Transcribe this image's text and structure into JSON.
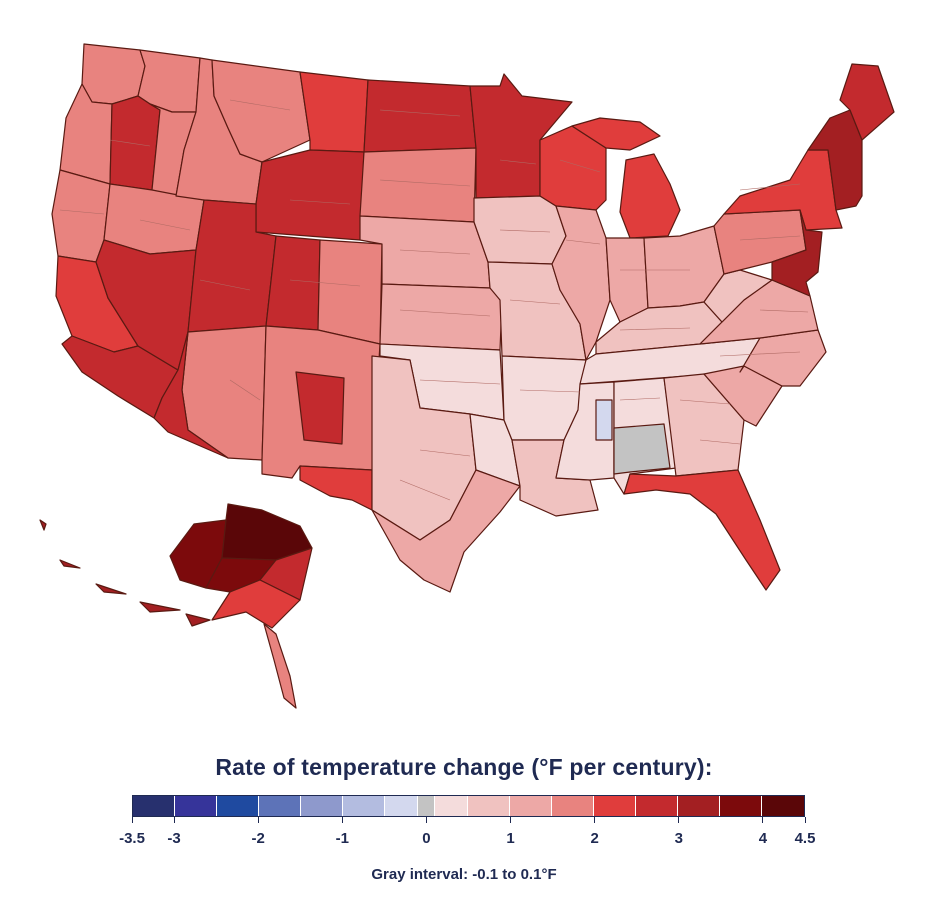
{
  "map": {
    "title": "Rate of temperature change (°F per century):",
    "note": "Gray interval: -0.1 to 0.1°F",
    "legend": {
      "range": [
        -3.5,
        4.5
      ],
      "bins": [
        {
          "from": -3.5,
          "to": -3.0,
          "color": "#27306e"
        },
        {
          "from": -3.0,
          "to": -2.5,
          "color": "#36349a"
        },
        {
          "from": -2.5,
          "to": -2.0,
          "color": "#1f4aa0"
        },
        {
          "from": -2.0,
          "to": -1.5,
          "color": "#5d73b8"
        },
        {
          "from": -1.5,
          "to": -1.0,
          "color": "#8e99cc"
        },
        {
          "from": -1.0,
          "to": -0.5,
          "color": "#b3bce0"
        },
        {
          "from": -0.5,
          "to": -0.1,
          "color": "#d3d8ee"
        },
        {
          "from": -0.1,
          "to": 0.1,
          "color": "#c3c3c3"
        },
        {
          "from": 0.1,
          "to": 0.5,
          "color": "#f4dcdc"
        },
        {
          "from": 0.5,
          "to": 1.0,
          "color": "#f0c2c0"
        },
        {
          "from": 1.0,
          "to": 1.5,
          "color": "#eda8a6"
        },
        {
          "from": 1.5,
          "to": 2.0,
          "color": "#e8837f"
        },
        {
          "from": 2.0,
          "to": 2.5,
          "color": "#e03d3c"
        },
        {
          "from": 2.5,
          "to": 3.0,
          "color": "#c32a2e"
        },
        {
          "from": 3.0,
          "to": 3.5,
          "color": "#a31f22"
        },
        {
          "from": 3.5,
          "to": 4.0,
          "color": "#7c0a0c"
        },
        {
          "from": 4.0,
          "to": 4.5,
          "color": "#5a0608"
        }
      ],
      "ticks": [
        {
          "value": -3.5,
          "label": "-3.5"
        },
        {
          "value": -3.0,
          "label": "-3"
        },
        {
          "value": -2.0,
          "label": "-2"
        },
        {
          "value": -1.0,
          "label": "-1"
        },
        {
          "value": 0.0,
          "label": "0"
        },
        {
          "value": 1.0,
          "label": "1"
        },
        {
          "value": 2.0,
          "label": "2"
        },
        {
          "value": 3.0,
          "label": "3"
        },
        {
          "value": 4.0,
          "label": "4"
        },
        {
          "value": 4.5,
          "label": "4.5"
        }
      ]
    },
    "areas": [
      {
        "name": "washington-west",
        "value": 1.7
      },
      {
        "name": "washington-east",
        "value": 1.8
      },
      {
        "name": "oregon-west",
        "value": 1.8
      },
      {
        "name": "oregon-central",
        "value": 2.8
      },
      {
        "name": "oregon-east",
        "value": 1.8
      },
      {
        "name": "california-north",
        "value": 1.9
      },
      {
        "name": "california-central",
        "value": 2.3
      },
      {
        "name": "california-south",
        "value": 2.8
      },
      {
        "name": "nevada-north",
        "value": 1.8
      },
      {
        "name": "nevada-south",
        "value": 2.8
      },
      {
        "name": "idaho",
        "value": 1.6
      },
      {
        "name": "montana-west",
        "value": 1.7
      },
      {
        "name": "montana-east",
        "value": 2.4
      },
      {
        "name": "wyoming",
        "value": 2.6
      },
      {
        "name": "utah",
        "value": 2.7
      },
      {
        "name": "colorado-west",
        "value": 2.9
      },
      {
        "name": "colorado-east",
        "value": 1.8
      },
      {
        "name": "arizona",
        "value": 1.9
      },
      {
        "name": "arizona-southwest",
        "value": 2.7
      },
      {
        "name": "new-mexico",
        "value": 1.8
      },
      {
        "name": "new-mexico-central",
        "value": 2.8
      },
      {
        "name": "north-dakota",
        "value": 2.6
      },
      {
        "name": "south-dakota",
        "value": 1.6
      },
      {
        "name": "nebraska",
        "value": 1.3
      },
      {
        "name": "kansas",
        "value": 1.3
      },
      {
        "name": "oklahoma",
        "value": 0.4
      },
      {
        "name": "texas-west",
        "value": 2.3
      },
      {
        "name": "texas-central",
        "value": 0.7
      },
      {
        "name": "texas-east",
        "value": 0.3
      },
      {
        "name": "texas-south",
        "value": 1.3
      },
      {
        "name": "minnesota",
        "value": 2.8
      },
      {
        "name": "iowa",
        "value": 0.8
      },
      {
        "name": "missouri",
        "value": 0.8
      },
      {
        "name": "arkansas",
        "value": 0.3
      },
      {
        "name": "louisiana",
        "value": 0.8
      },
      {
        "name": "wisconsin",
        "value": 2.4
      },
      {
        "name": "illinois",
        "value": 1.1
      },
      {
        "name": "michigan-upper",
        "value": 2.4
      },
      {
        "name": "michigan-lower",
        "value": 2.2
      },
      {
        "name": "indiana",
        "value": 1.3
      },
      {
        "name": "ohio",
        "value": 1.2
      },
      {
        "name": "kentucky",
        "value": 0.6
      },
      {
        "name": "tennessee",
        "value": 0.3
      },
      {
        "name": "mississippi",
        "value": 0.3
      },
      {
        "name": "alabama",
        "value": 0.3
      },
      {
        "name": "alabama-central",
        "value": 0.0
      },
      {
        "name": "mississippi-east",
        "value": -0.3
      },
      {
        "name": "georgia",
        "value": 0.7
      },
      {
        "name": "florida",
        "value": 2.3
      },
      {
        "name": "south-carolina",
        "value": 1.2
      },
      {
        "name": "north-carolina",
        "value": 1.3
      },
      {
        "name": "virginia",
        "value": 1.3
      },
      {
        "name": "west-virginia",
        "value": 0.6
      },
      {
        "name": "pennsylvania",
        "value": 1.6
      },
      {
        "name": "new-york",
        "value": 2.3
      },
      {
        "name": "new-jersey",
        "value": 3.2
      },
      {
        "name": "new-england",
        "value": 3.1
      },
      {
        "name": "maine",
        "value": 2.9
      },
      {
        "name": "alaska-north",
        "value": 4.3
      },
      {
        "name": "alaska-west",
        "value": 3.7
      },
      {
        "name": "alaska-interior",
        "value": 3.8
      },
      {
        "name": "alaska-southeast",
        "value": 2.8
      },
      {
        "name": "alaska-southcentral",
        "value": 2.3
      },
      {
        "name": "alaska-panhandle",
        "value": 1.8
      }
    ]
  }
}
